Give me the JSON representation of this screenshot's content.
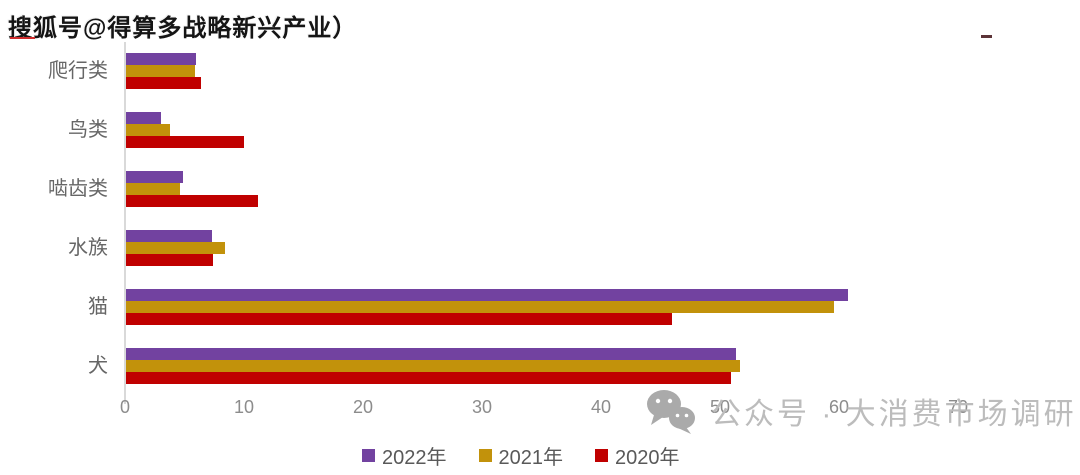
{
  "watermarks": {
    "top_left": "搜狐号@得算多战略新兴产业）",
    "bottom_right": "公众号 · 大消费市场调研"
  },
  "chart_data": {
    "type": "bar",
    "orientation": "horizontal",
    "categories": [
      "爬行类",
      "鸟类",
      "啮齿类",
      "水族",
      "猫",
      "犬"
    ],
    "series": [
      {
        "name": "2022年",
        "color": "#7242A0",
        "values": [
          5.9,
          2.9,
          4.8,
          7.2,
          60.7,
          51.3
        ]
      },
      {
        "name": "2021年",
        "color": "#C2920B",
        "values": [
          5.8,
          3.7,
          4.5,
          8.3,
          59.5,
          51.6
        ]
      },
      {
        "name": "2020年",
        "color": "#C00000",
        "values": [
          6.3,
          9.9,
          11.1,
          7.3,
          45.9,
          50.8
        ]
      }
    ],
    "xlim": [
      0,
      70
    ],
    "xticks": [
      0,
      10,
      20,
      30,
      40,
      50,
      60,
      70
    ],
    "grid": false,
    "legend_position": "bottom"
  }
}
